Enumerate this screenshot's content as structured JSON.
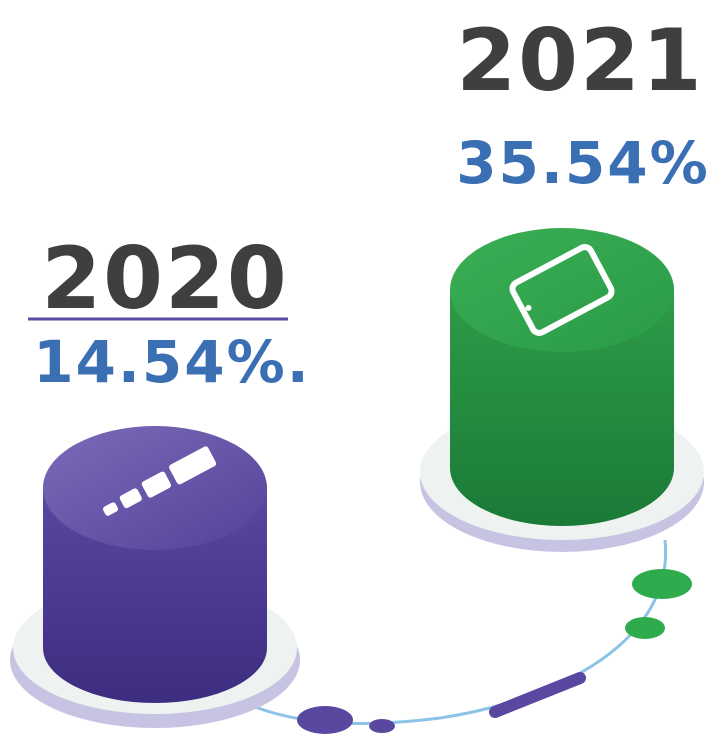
{
  "items": [
    {
      "year": "2020",
      "value": "14.54%."
    },
    {
      "year": "2021",
      "value": "35.54%."
    }
  ]
}
